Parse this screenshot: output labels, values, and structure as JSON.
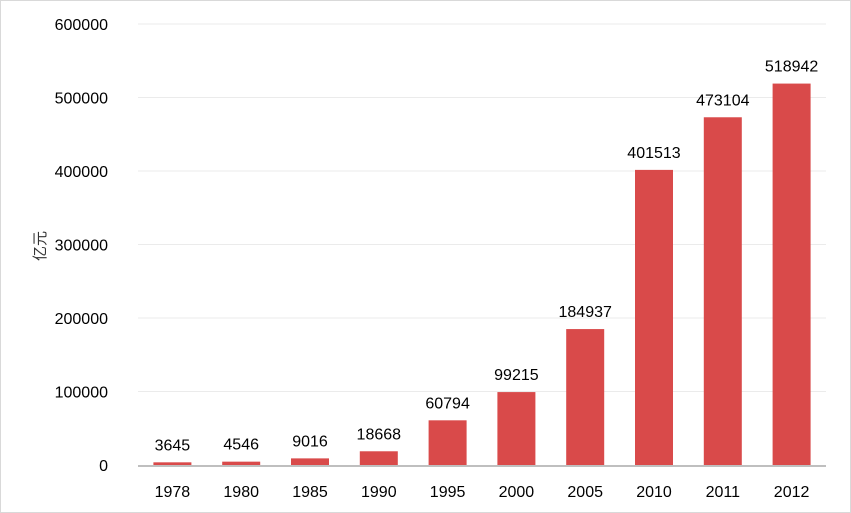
{
  "chart_data": {
    "type": "bar",
    "title": "",
    "xlabel": "",
    "ylabel": "亿元",
    "ylim": [
      0,
      600000
    ],
    "yticks": [
      0,
      100000,
      200000,
      300000,
      400000,
      500000,
      600000
    ],
    "grid": true,
    "categories": [
      "1978",
      "1980",
      "1985",
      "1990",
      "1995",
      "2000",
      "2005",
      "2010",
      "2011",
      "2012"
    ],
    "values": [
      3645,
      4546,
      9016,
      18668,
      60794,
      99215,
      184937,
      401513,
      473104,
      518942
    ],
    "data_labels": [
      "3645",
      "4546",
      "9016",
      "18668",
      "60794",
      "99215",
      "184937",
      "401513",
      "473104",
      "518942"
    ],
    "colors": {
      "bar": "#d94a4a",
      "grid": "#ebebeb",
      "axis": "#bfbfbf"
    }
  }
}
